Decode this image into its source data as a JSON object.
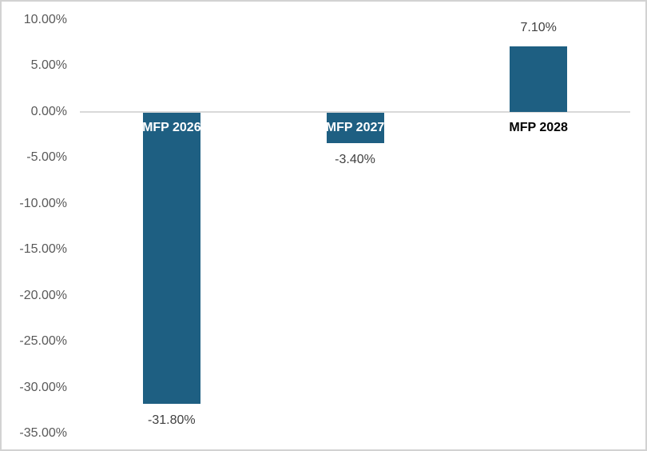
{
  "chart_data": {
    "type": "bar",
    "title": "",
    "categories": [
      "MFP 2026",
      "MFP 2027",
      "MFP 2028"
    ],
    "values": [
      -31.8,
      -3.4,
      7.1
    ],
    "data_labels": [
      "-31.80%",
      "-3.40%",
      "7.10%"
    ],
    "ytick_values": [
      10,
      5,
      0,
      -5,
      -10,
      -15,
      -20,
      -25,
      -30,
      -35
    ],
    "ytick_labels": [
      "10.00%",
      "5.00%",
      "0.00%",
      "-5.00%",
      "-10.00%",
      "-15.00%",
      "-20.00%",
      "-25.00%",
      "-30.00%",
      "-35.00%"
    ],
    "ylim": [
      -35,
      10
    ],
    "grid": false,
    "legend": false,
    "xlabel": "",
    "ylabel": "",
    "colors": {
      "bar": "#1e5f82",
      "axis_line": "#d9d9d9",
      "ytick_label": "#595959",
      "data_label": "#404040",
      "category_label_on_bar": "#ffffff",
      "category_label_default": "#000000",
      "frame_border": "#d2d2d2",
      "background": "#ffffff"
    }
  }
}
